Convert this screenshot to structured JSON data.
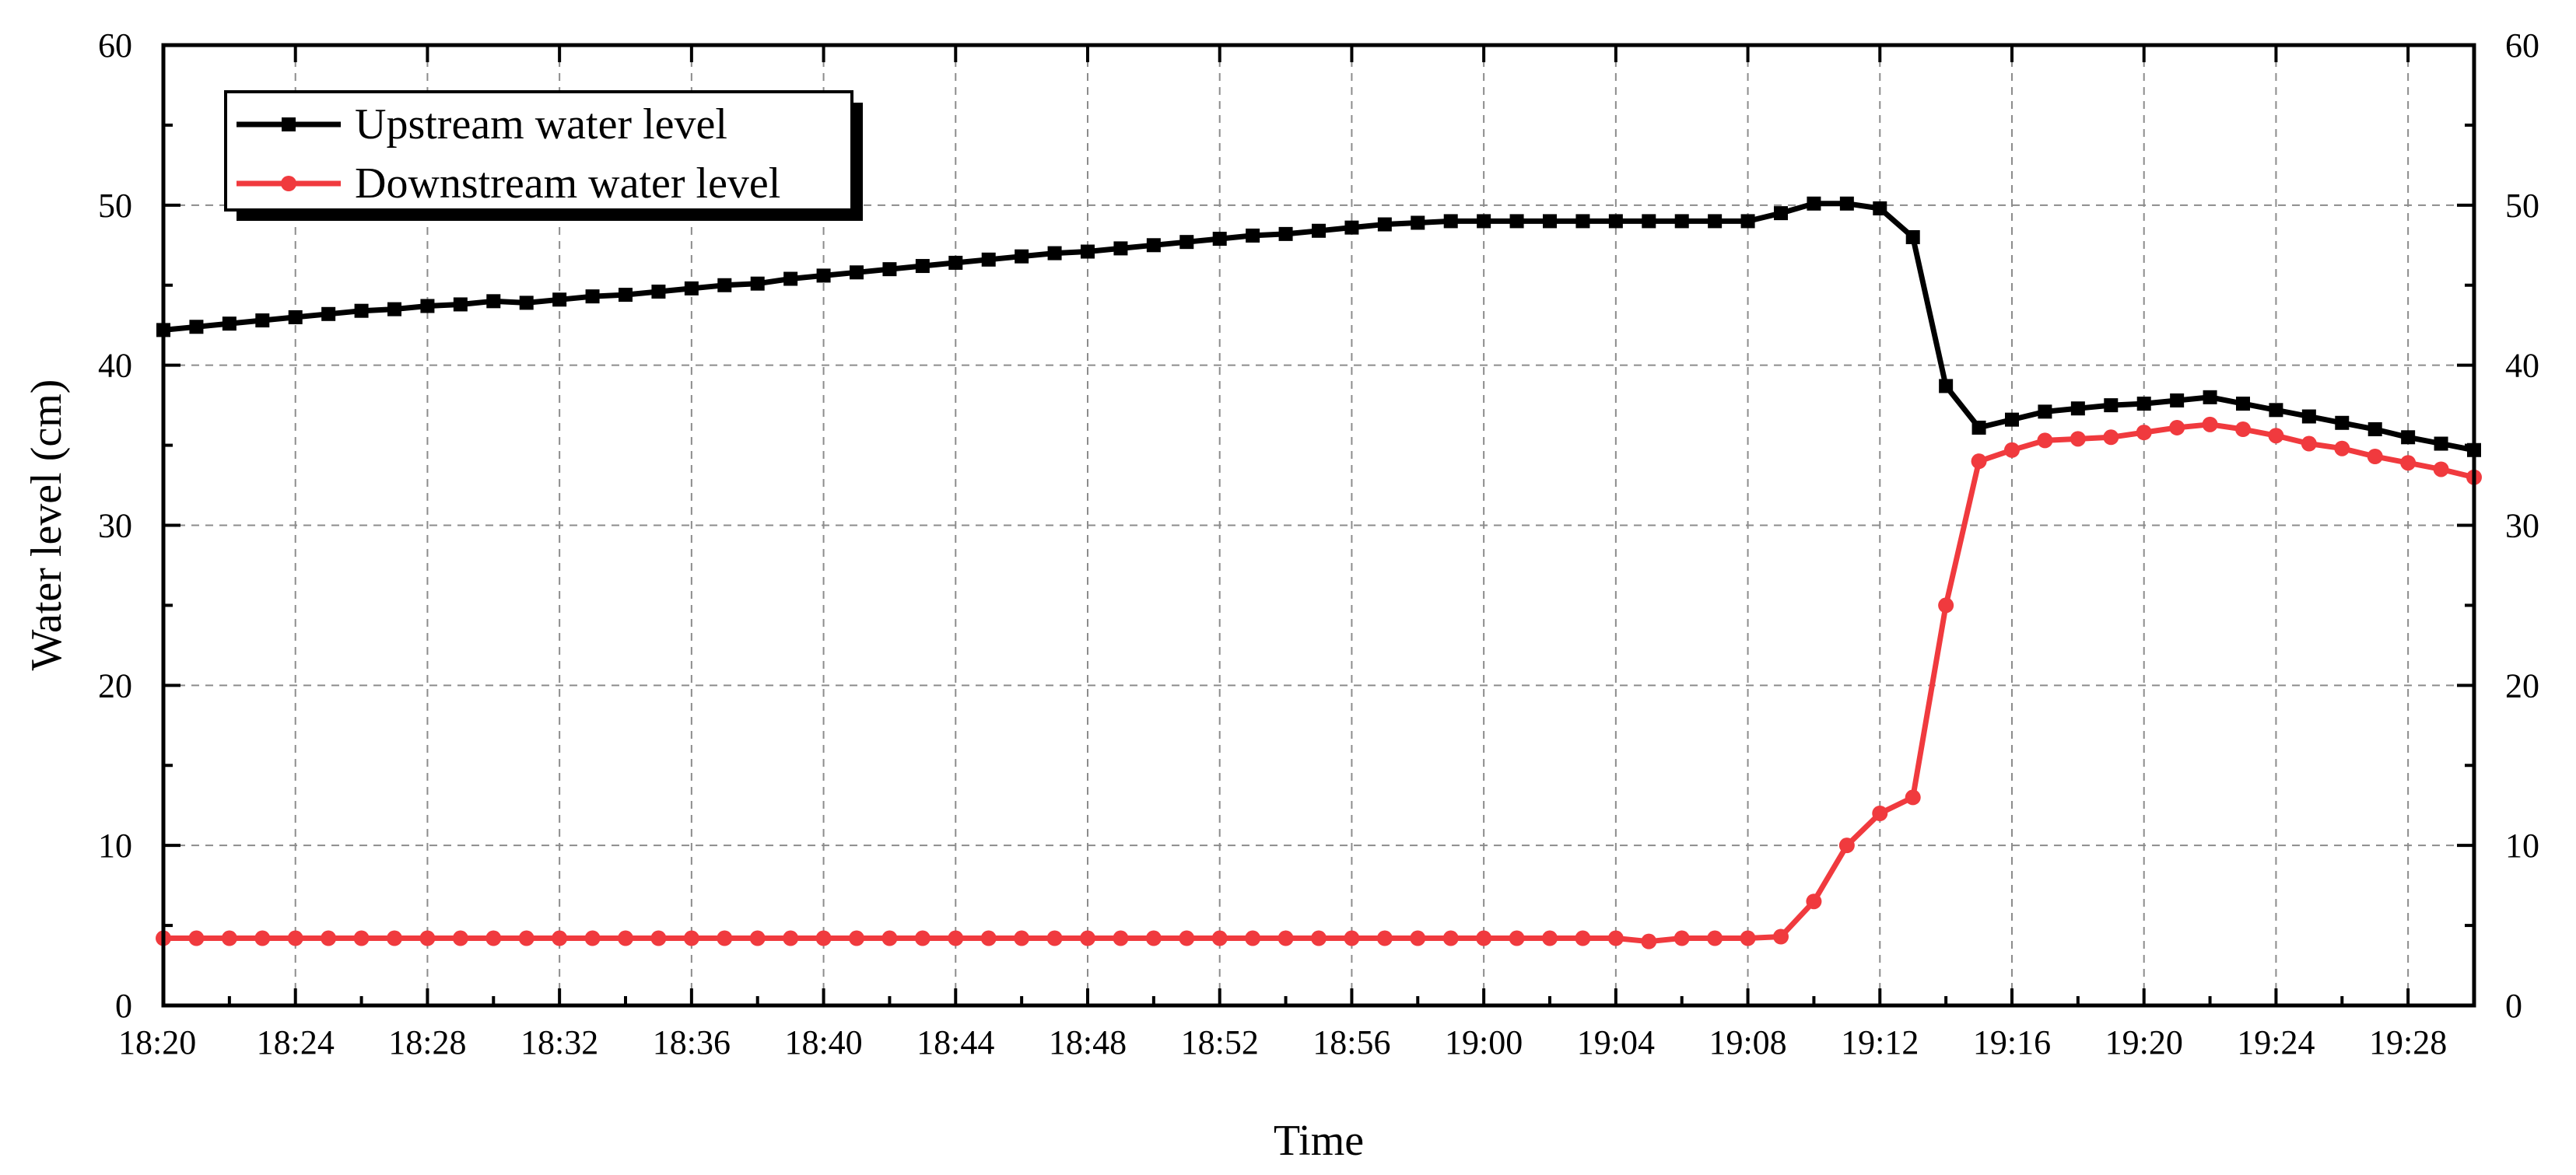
{
  "chart_data": {
    "type": "line",
    "title": "",
    "xlabel": "Time",
    "ylabel": "Water level (cm)",
    "ylim": [
      0,
      60
    ],
    "y_ticks": [
      0,
      10,
      20,
      30,
      40,
      50,
      60
    ],
    "secondary_y_axis": true,
    "grid": true,
    "legend_position": "top-left",
    "x_tick_labels": [
      "18:20",
      "18:24",
      "18:28",
      "18:32",
      "18:36",
      "18:40",
      "18:44",
      "18:48",
      "18:52",
      "18:56",
      "19:00",
      "19:04",
      "19:08",
      "19:12",
      "19:16",
      "19:20",
      "19:24",
      "19:28"
    ],
    "x": [
      "18:20",
      "18:21",
      "18:22",
      "18:23",
      "18:24",
      "18:25",
      "18:26",
      "18:27",
      "18:28",
      "18:29",
      "18:30",
      "18:31",
      "18:32",
      "18:33",
      "18:34",
      "18:35",
      "18:36",
      "18:37",
      "18:38",
      "18:39",
      "18:40",
      "18:41",
      "18:42",
      "18:43",
      "18:44",
      "18:45",
      "18:46",
      "18:47",
      "18:48",
      "18:49",
      "18:50",
      "18:51",
      "18:52",
      "18:53",
      "18:54",
      "18:55",
      "18:56",
      "18:57",
      "18:58",
      "18:59",
      "19:00",
      "19:01",
      "19:02",
      "19:03",
      "19:04",
      "19:05",
      "19:06",
      "19:07",
      "19:08",
      "19:09",
      "19:10",
      "19:11",
      "19:12",
      "19:13",
      "19:14",
      "19:15",
      "19:16",
      "19:17",
      "19:18",
      "19:19",
      "19:20",
      "19:21",
      "19:22",
      "19:23",
      "19:24",
      "19:25",
      "19:26",
      "19:27",
      "19:28",
      "19:29",
      "19:30"
    ],
    "series": [
      {
        "name": "Upstream water level",
        "color": "#000000",
        "marker": "square",
        "values": [
          42.2,
          42.4,
          42.6,
          42.8,
          43.0,
          43.2,
          43.4,
          43.5,
          43.7,
          43.8,
          44.0,
          43.9,
          44.1,
          44.3,
          44.4,
          44.6,
          44.8,
          45.0,
          45.1,
          45.4,
          45.6,
          45.8,
          46.0,
          46.2,
          46.4,
          46.6,
          46.8,
          47.0,
          47.1,
          47.3,
          47.5,
          47.7,
          47.9,
          48.1,
          48.2,
          48.4,
          48.6,
          48.8,
          48.9,
          49.0,
          49.0,
          49.0,
          49.0,
          49.0,
          49.0,
          49.0,
          49.0,
          49.0,
          49.0,
          49.5,
          50.1,
          50.1,
          49.8,
          48.0,
          38.7,
          36.1,
          36.6,
          37.1,
          37.3,
          37.5,
          37.6,
          37.8,
          38.0,
          37.6,
          37.2,
          36.8,
          36.4,
          36.0,
          35.5,
          35.1,
          34.7
        ]
      },
      {
        "name": "Downstream water level",
        "color": "#f03a3e",
        "marker": "circle",
        "values": [
          4.2,
          4.2,
          4.2,
          4.2,
          4.2,
          4.2,
          4.2,
          4.2,
          4.2,
          4.2,
          4.2,
          4.2,
          4.2,
          4.2,
          4.2,
          4.2,
          4.2,
          4.2,
          4.2,
          4.2,
          4.2,
          4.2,
          4.2,
          4.2,
          4.2,
          4.2,
          4.2,
          4.2,
          4.2,
          4.2,
          4.2,
          4.2,
          4.2,
          4.2,
          4.2,
          4.2,
          4.2,
          4.2,
          4.2,
          4.2,
          4.2,
          4.2,
          4.2,
          4.2,
          4.2,
          4.0,
          4.2,
          4.2,
          4.2,
          4.3,
          6.5,
          10.0,
          12.0,
          13.0,
          25.0,
          34.0,
          34.7,
          35.3,
          35.4,
          35.5,
          35.8,
          36.1,
          36.3,
          36.0,
          35.6,
          35.1,
          34.8,
          34.3,
          33.9,
          33.5,
          33.0
        ]
      }
    ]
  }
}
